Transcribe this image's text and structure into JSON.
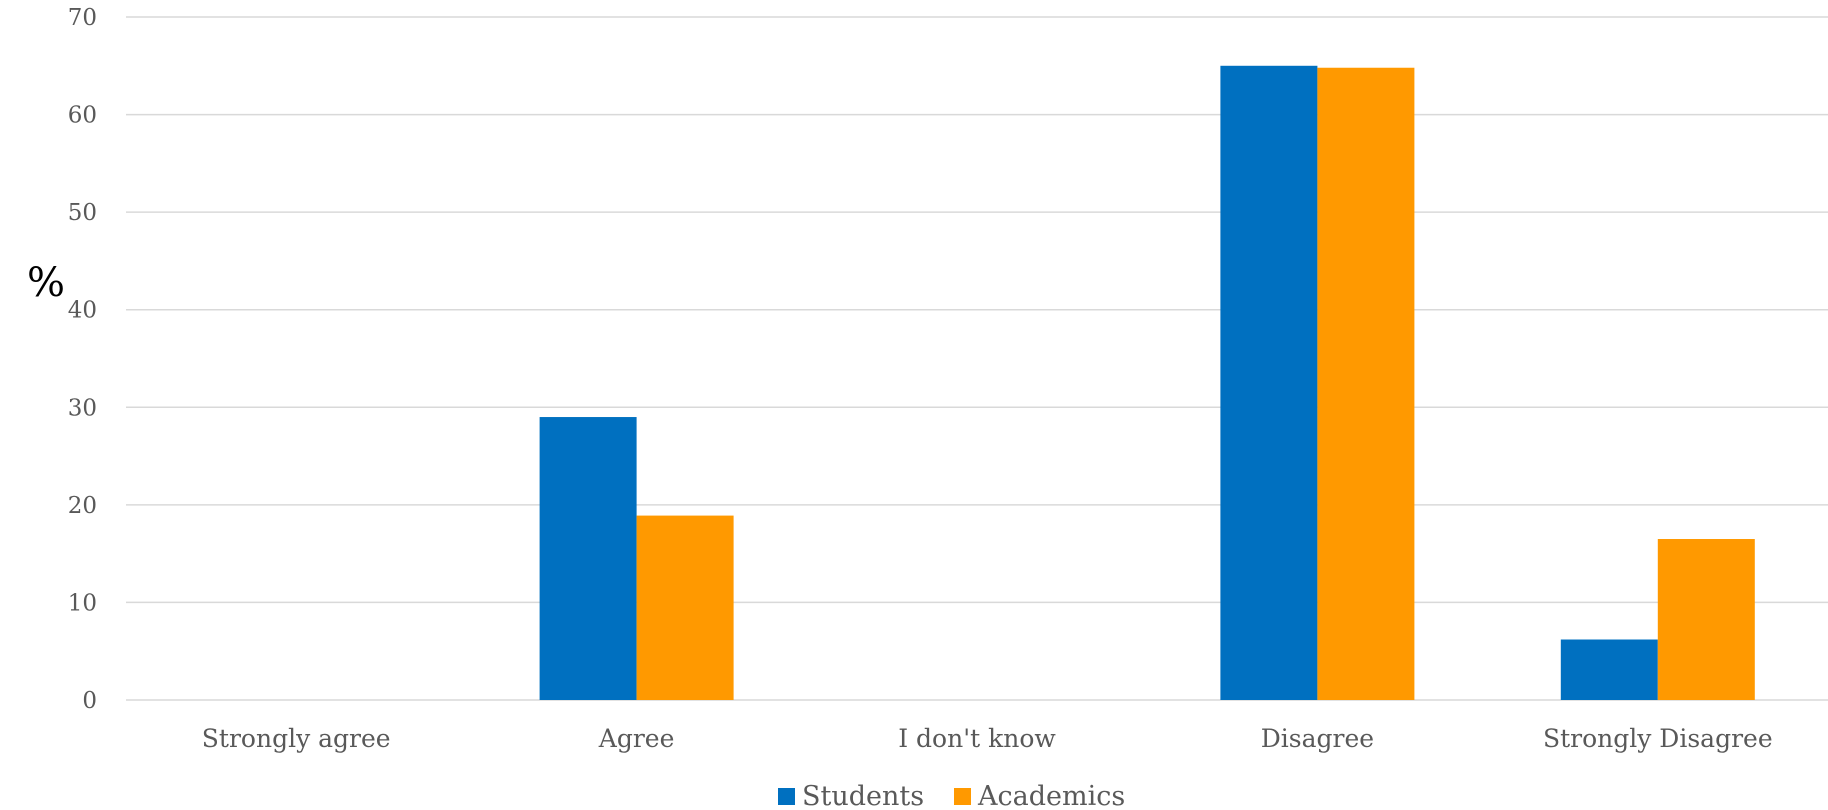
{
  "chart_data": {
    "type": "bar",
    "title": "",
    "xlabel": "",
    "ylabel": "%",
    "ylim": [
      0,
      70
    ],
    "yticks": [
      0,
      10,
      20,
      30,
      40,
      50,
      60,
      70
    ],
    "grid": true,
    "legend_position": "bottom",
    "categories": [
      "Strongly agree",
      "Agree",
      "I don't know",
      "Disagree",
      "Strongly Disagree"
    ],
    "series": [
      {
        "name": "Students",
        "color": "#0070c0",
        "values": [
          0,
          29,
          0,
          65,
          6.2
        ]
      },
      {
        "name": "Academics",
        "color": "#ff9900",
        "values": [
          0,
          18.9,
          0,
          64.8,
          16.5
        ]
      }
    ]
  }
}
